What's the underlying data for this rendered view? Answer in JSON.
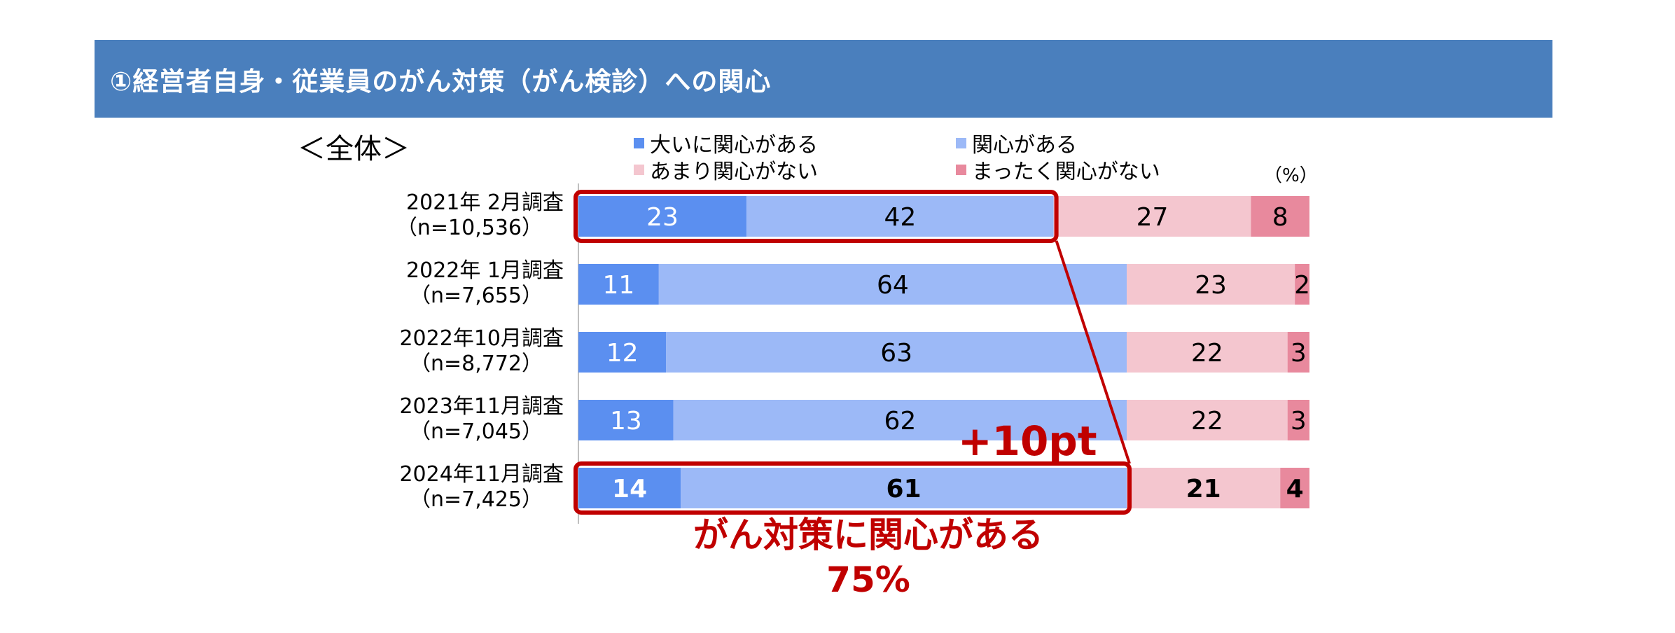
{
  "header": {
    "title": "①経営者自身・従業員のがん対策（がん検診）への関心"
  },
  "subset_label": "＜全体＞",
  "unit_label": "（%）",
  "colors": {
    "header_bg": "#4a7fbd",
    "very_interested": "#5b8ff0",
    "interested": "#9cb9f7",
    "not_very": "#f4c6cf",
    "not_at_all": "#e8899d",
    "highlight": "#c00000"
  },
  "chart_data": {
    "type": "bar",
    "orientation": "horizontal-stacked-100",
    "categories": [
      {
        "survey": "2021年 2月調査",
        "n": "（n=10,536）"
      },
      {
        "survey": "2022年 1月調査",
        "n": "（n=7,655）"
      },
      {
        "survey": "2022年10月調査",
        "n": "（n=8,772）"
      },
      {
        "survey": "2023年11月調査",
        "n": "（n=7,045）"
      },
      {
        "survey": "2024年11月調査",
        "n": "（n=7,425）"
      }
    ],
    "series": [
      {
        "name": "大いに関心がある",
        "values": [
          23,
          11,
          12,
          13,
          14
        ]
      },
      {
        "name": "関心がある",
        "values": [
          42,
          64,
          63,
          62,
          61
        ]
      },
      {
        "name": "あまり関心がない",
        "values": [
          27,
          23,
          22,
          22,
          21
        ]
      },
      {
        "name": "まったく関心がない",
        "values": [
          8,
          2,
          3,
          3,
          4
        ]
      }
    ],
    "xlim": [
      0,
      100
    ],
    "legend_position": "top",
    "highlighted_rows": [
      0,
      4
    ],
    "bold_row": 4
  },
  "annotations": {
    "change": "+10pt",
    "label_line1": "がん対策に関心がある",
    "label_line2": "75%"
  }
}
